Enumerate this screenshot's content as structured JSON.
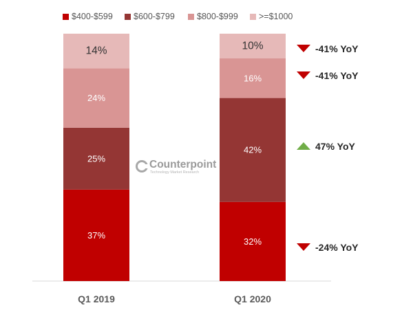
{
  "watermark": {
    "brand": "Counterpoint",
    "tagline": "Technology Market Research"
  },
  "chart_data": {
    "type": "bar",
    "stacked": true,
    "categories": [
      "Q1 2019",
      "Q1 2020"
    ],
    "series": [
      {
        "name": "$400-$599",
        "color": "#c00000",
        "values": [
          37,
          32
        ],
        "labels": [
          "37%",
          "32%"
        ]
      },
      {
        "name": "$600-$799",
        "color": "#943634",
        "values": [
          25,
          42
        ],
        "labels": [
          "25%",
          "42%"
        ]
      },
      {
        "name": "$800-$999",
        "color": "#d99594",
        "values": [
          24,
          16
        ],
        "labels": [
          "24%",
          "16%"
        ]
      },
      {
        "name": ">=$1000",
        "color": "#e6b9b8",
        "values": [
          14,
          10
        ],
        "labels": [
          "14%",
          "10%"
        ]
      }
    ],
    "ylim": [
      0,
      100
    ],
    "grid": false,
    "legend_position": "top",
    "annotations": [
      {
        "series": ">=$1000",
        "text": "-41% YoY",
        "direction": "down",
        "color": "#c00000"
      },
      {
        "series": "$800-$999",
        "text": "-41% YoY",
        "direction": "down",
        "color": "#c00000"
      },
      {
        "series": "$600-$799",
        "text": "47% YoY",
        "direction": "up",
        "color": "#70ad47"
      },
      {
        "series": "$400-$599",
        "text": "-24% YoY",
        "direction": "down",
        "color": "#c00000"
      }
    ]
  }
}
